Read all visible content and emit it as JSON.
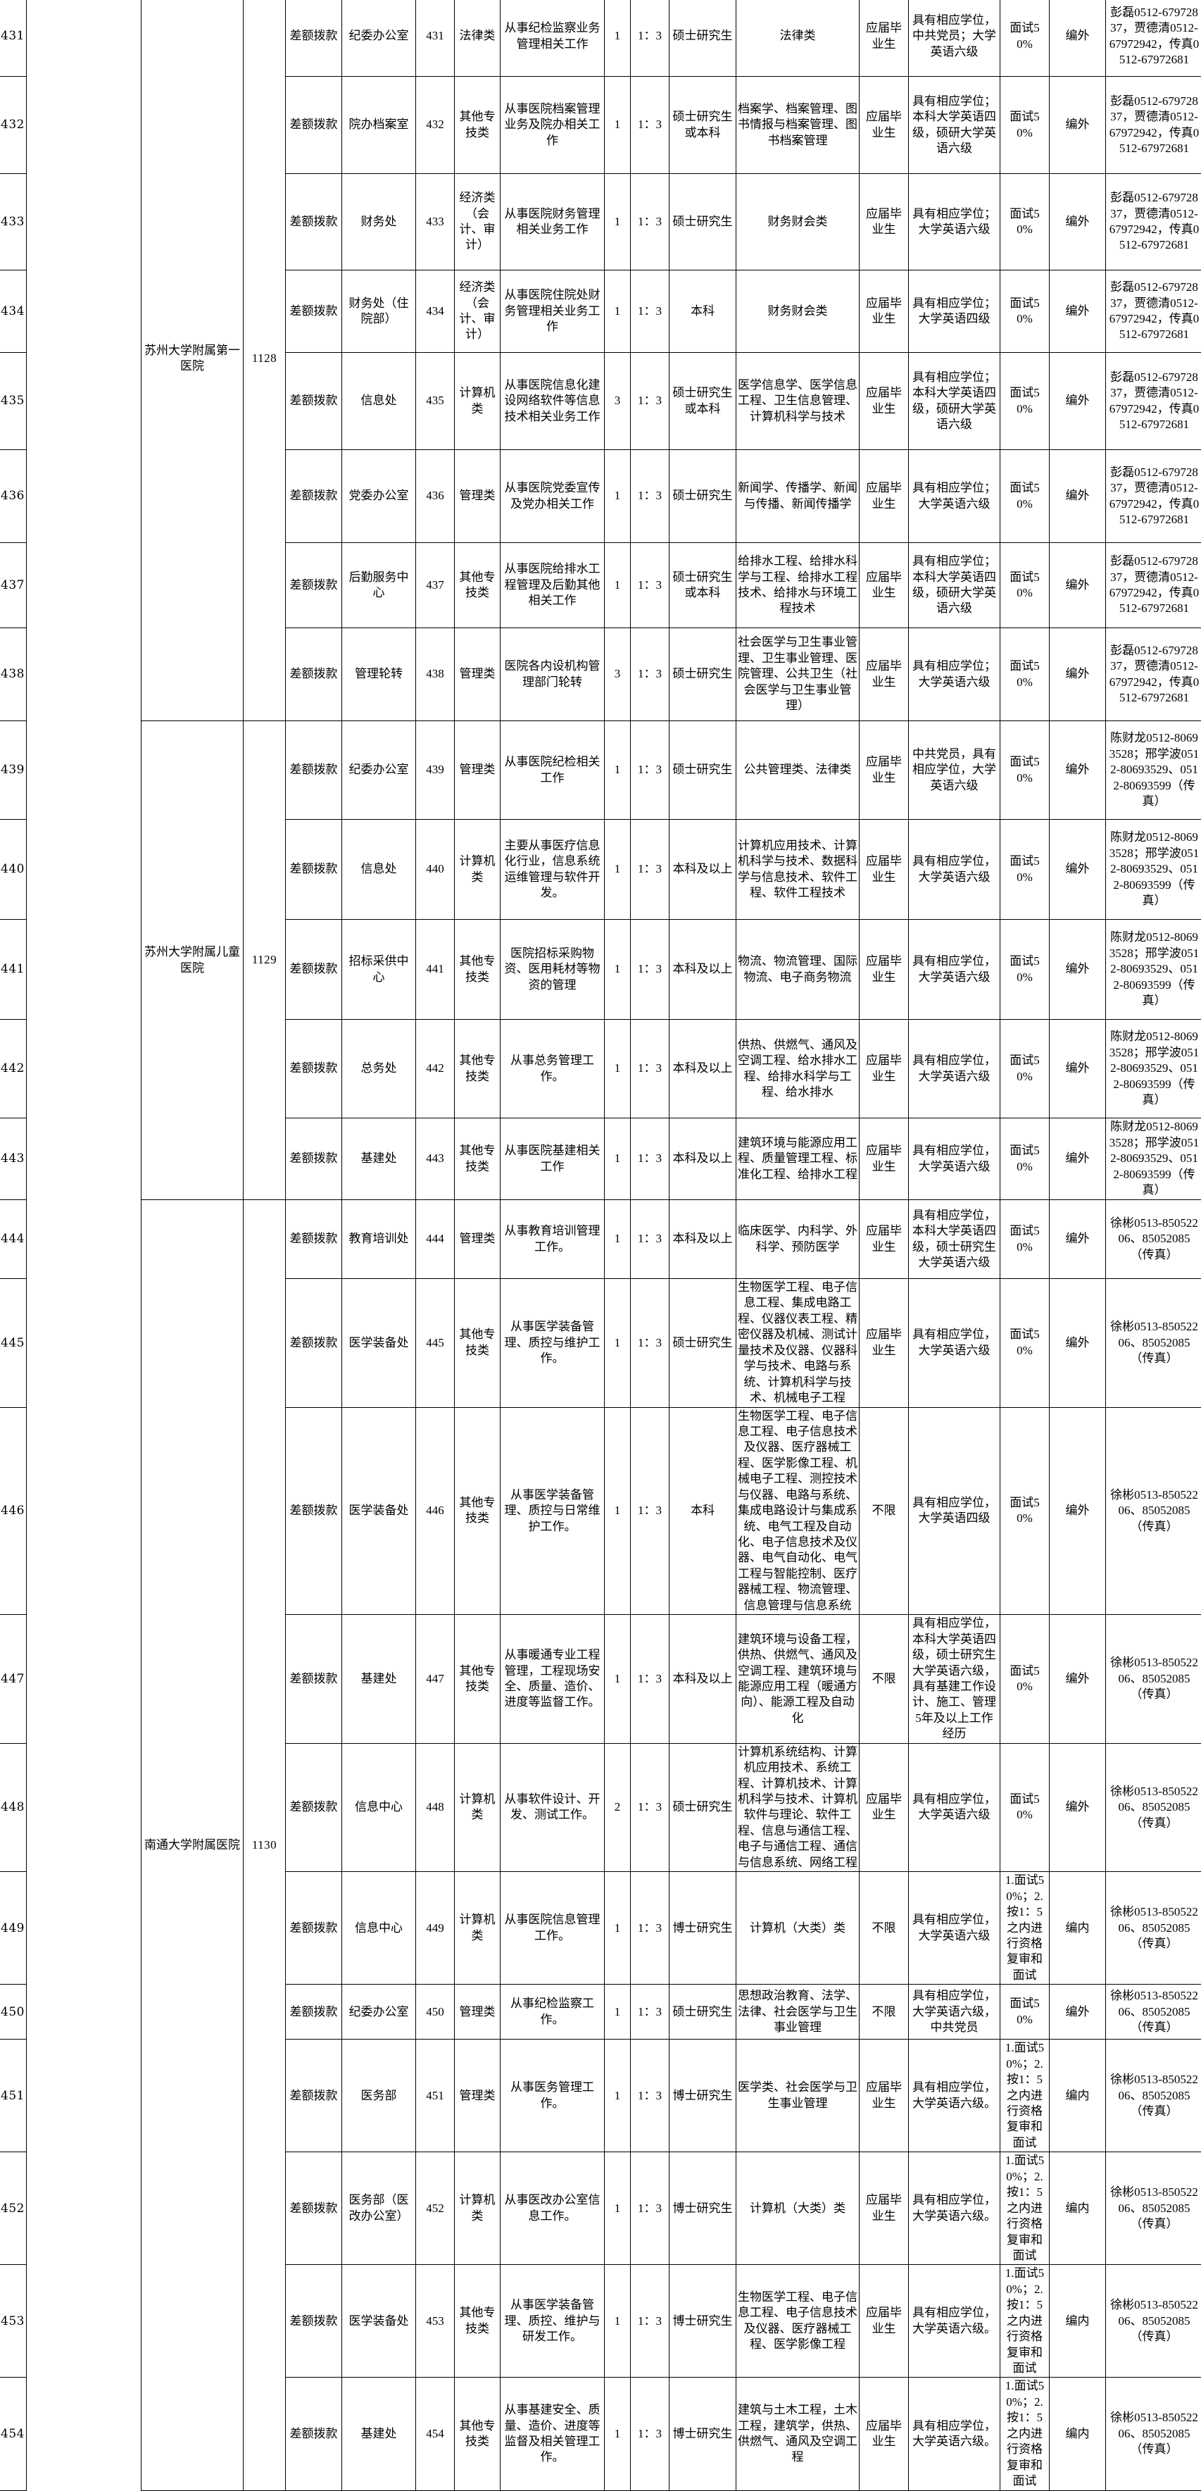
{
  "table": {
    "groups": [
      {
        "org": "苏州大学附属第一医院",
        "code": "1128",
        "row_count": 8,
        "contact": "彭磊0512-67972837，贾德清0512-67972942，传真0512-67972681"
      },
      {
        "org": "苏州大学附属儿童医院",
        "code": "1129",
        "row_count": 5,
        "contact": "陈财龙0512-80693528；邢学波0512-80693529、0512-80693599（传真）"
      },
      {
        "org": "南通大学附属医院",
        "code": "1130",
        "row_count": 11,
        "contact": "徐彬0513-85052206、85052085（传真）"
      }
    ],
    "rows": [
      {
        "seq": "431",
        "funding": "差额拨款",
        "dept": "纪委办公室",
        "job_code": "431",
        "category": "法律类",
        "duty": "从事纪检监察业务管理相关工作",
        "count": "1",
        "ratio": "1：3",
        "education": "硕士研究生",
        "majors": "法律类",
        "grad_type": "应届毕业生",
        "requirements": "具有相应学位，中共党员；大学英语六级",
        "exam": "面试50%",
        "note": "编外",
        "contact": "彭磊0512-67972837，贾德清0512-67972942，传真0512-67972681"
      },
      {
        "seq": "432",
        "funding": "差额拨款",
        "dept": "院办档案室",
        "job_code": "432",
        "category": "其他专技类",
        "duty": "从事医院档案管理业务及院办相关工作",
        "count": "1",
        "ratio": "1：3",
        "education": "硕士研究生或本科",
        "majors": "档案学、档案管理、图书情报与档案管理、图书档案管理",
        "grad_type": "应届毕业生",
        "requirements": "具有相应学位；本科大学英语四级，硕研大学英语六级",
        "exam": "面试50%",
        "note": "编外",
        "contact": "彭磊0512-67972837，贾德清0512-67972942，传真0512-67972681"
      },
      {
        "seq": "433",
        "funding": "差额拨款",
        "dept": "财务处",
        "job_code": "433",
        "category": "经济类（会计、审计）",
        "duty": "从事医院财务管理相关业务工作",
        "count": "1",
        "ratio": "1：3",
        "education": "硕士研究生",
        "majors": "财务财会类",
        "grad_type": "应届毕业生",
        "requirements": "具有相应学位；大学英语六级",
        "exam": "面试50%",
        "note": "编外",
        "contact": "彭磊0512-67972837，贾德清0512-67972942，传真0512-67972681"
      },
      {
        "seq": "434",
        "funding": "差额拨款",
        "dept": "财务处（住院部）",
        "job_code": "434",
        "category": "经济类（会计、审计）",
        "duty": "从事医院住院处财务管理相关业务工作",
        "count": "1",
        "ratio": "1：3",
        "education": "本科",
        "majors": "财务财会类",
        "grad_type": "应届毕业生",
        "requirements": "具有相应学位；大学英语四级",
        "exam": "面试50%",
        "note": "编外",
        "contact": "彭磊0512-67972837，贾德清0512-67972942，传真0512-67972681"
      },
      {
        "seq": "435",
        "funding": "差额拨款",
        "dept": "信息处",
        "job_code": "435",
        "category": "计算机类",
        "duty": "从事医院信息化建设网络软件等信息技术相关业务工作",
        "count": "3",
        "ratio": "1：3",
        "education": "硕士研究生或本科",
        "majors": "医学信息学、医学信息工程、卫生信息管理、计算机科学与技术",
        "grad_type": "应届毕业生",
        "requirements": "具有相应学位；本科大学英语四级，硕研大学英语六级",
        "exam": "面试50%",
        "note": "编外",
        "contact": "彭磊0512-67972837，贾德清0512-67972942，传真0512-67972681"
      },
      {
        "seq": "436",
        "funding": "差额拨款",
        "dept": "党委办公室",
        "job_code": "436",
        "category": "管理类",
        "duty": "从事医院党委宣传及党办相关工作",
        "count": "1",
        "ratio": "1：3",
        "education": "硕士研究生",
        "majors": "新闻学、传播学、新闻与传播、新闻传播学",
        "grad_type": "应届毕业生",
        "requirements": "具有相应学位；大学英语六级",
        "exam": "面试50%",
        "note": "编外",
        "contact": "彭磊0512-67972837，贾德清0512-67972942，传真0512-67972681"
      },
      {
        "seq": "437",
        "funding": "差额拨款",
        "dept": "后勤服务中心",
        "job_code": "437",
        "category": "其他专技类",
        "duty": "从事医院给排水工程管理及后勤其他相关工作",
        "count": "1",
        "ratio": "1：3",
        "education": "硕士研究生或本科",
        "majors": "给排水工程、给排水科学与工程、给排水工程技术、给排水与环境工程技术",
        "grad_type": "应届毕业生",
        "requirements": "具有相应学位；本科大学英语四级，硕研大学英语六级",
        "exam": "面试50%",
        "note": "编外",
        "contact": "彭磊0512-67972837，贾德清0512-67972942，传真0512-67972681"
      },
      {
        "seq": "438",
        "funding": "差额拨款",
        "dept": "管理轮转",
        "job_code": "438",
        "category": "管理类",
        "duty": "医院各内设机构管理部门轮转",
        "count": "3",
        "ratio": "1：3",
        "education": "硕士研究生",
        "majors": "社会医学与卫生事业管理、卫生事业管理、医院管理、公共卫生（社会医学与卫生事业管理）",
        "grad_type": "应届毕业生",
        "requirements": "具有相应学位；大学英语六级",
        "exam": "面试50%",
        "note": "编外",
        "contact": "彭磊0512-67972837，贾德清0512-67972942，传真0512-67972681"
      },
      {
        "seq": "439",
        "funding": "差额拨款",
        "dept": "纪委办公室",
        "job_code": "439",
        "category": "管理类",
        "duty": "从事医院纪检相关工作",
        "count": "1",
        "ratio": "1：3",
        "education": "硕士研究生",
        "majors": "公共管理类、法律类",
        "grad_type": "应届毕业生",
        "requirements": "中共党员，具有相应学位，大学英语六级",
        "exam": "面试50%",
        "note": "编外",
        "contact": "陈财龙0512-80693528；邢学波0512-80693529、0512-80693599（传真）"
      },
      {
        "seq": "440",
        "funding": "差额拨款",
        "dept": "信息处",
        "job_code": "440",
        "category": "计算机类",
        "duty": "主要从事医疗信息化行业，信息系统运维管理与软件开发。",
        "count": "1",
        "ratio": "1：3",
        "education": "本科及以上",
        "majors": "计算机应用技术、计算机科学与技术、数据科学与信息技术、软件工程、软件工程技术",
        "grad_type": "应届毕业生",
        "requirements": "具有相应学位，大学英语六级",
        "exam": "面试50%",
        "note": "编外",
        "contact": "陈财龙0512-80693528；邢学波0512-80693529、0512-80693599（传真）"
      },
      {
        "seq": "441",
        "funding": "差额拨款",
        "dept": "招标采供中心",
        "job_code": "441",
        "category": "其他专技类",
        "duty": "医院招标采购物资、医用耗材等物资的管理",
        "count": "1",
        "ratio": "1：3",
        "education": "本科及以上",
        "majors": "物流、物流管理、国际物流、电子商务物流",
        "grad_type": "应届毕业生",
        "requirements": "具有相应学位，大学英语六级",
        "exam": "面试50%",
        "note": "编外",
        "contact": "陈财龙0512-80693528；邢学波0512-80693529、0512-80693599（传真）"
      },
      {
        "seq": "442",
        "funding": "差额拨款",
        "dept": "总务处",
        "job_code": "442",
        "category": "其他专技类",
        "duty": "从事总务管理工作。",
        "count": "1",
        "ratio": "1：3",
        "education": "本科及以上",
        "majors": "供热、供燃气、通风及空调工程、给水排水工程、给排水科学与工程、给水排水",
        "grad_type": "应届毕业生",
        "requirements": "具有相应学位，大学英语六级",
        "exam": "面试50%",
        "note": "编外",
        "contact": "陈财龙0512-80693528；邢学波0512-80693529、0512-80693599（传真）"
      },
      {
        "seq": "443",
        "funding": "差额拨款",
        "dept": "基建处",
        "job_code": "443",
        "category": "其他专技类",
        "duty": "从事医院基建相关工作",
        "count": "1",
        "ratio": "1：3",
        "education": "本科及以上",
        "majors": "建筑环境与能源应用工程、质量管理工程、标准化工程、给排水工程",
        "grad_type": "应届毕业生",
        "requirements": "具有相应学位，大学英语六级",
        "exam": "面试50%",
        "note": "编外",
        "contact": "陈财龙0512-80693528；邢学波0512-80693529、0512-80693599（传真）"
      },
      {
        "seq": "444",
        "funding": "差额拨款",
        "dept": "教育培训处",
        "job_code": "444",
        "category": "管理类",
        "duty": "从事教育培训管理工作。",
        "count": "1",
        "ratio": "1：3",
        "education": "本科及以上",
        "majors": "临床医学、内科学、外科学、预防医学",
        "grad_type": "应届毕业生",
        "requirements": "具有相应学位，本科大学英语四级，硕士研究生大学英语六级",
        "exam": "面试50%",
        "note": "编外",
        "contact": "徐彬0513-85052206、85052085（传真）"
      },
      {
        "seq": "445",
        "funding": "差额拨款",
        "dept": "医学装备处",
        "job_code": "445",
        "category": "其他专技类",
        "duty": "从事医学装备管理、质控与维护工作。",
        "count": "1",
        "ratio": "1：3",
        "education": "硕士研究生",
        "majors": "生物医学工程、电子信息工程、集成电路工程、仪器仪表工程、精密仪器及机械、测试计量技术及仪器、仪器科学与技术、电路与系统、计算机科学与技术、机械电子工程",
        "grad_type": "应届毕业生",
        "requirements": "具有相应学位，大学英语六级",
        "exam": "面试50%",
        "note": "编外",
        "contact": "徐彬0513-85052206、85052085（传真）"
      },
      {
        "seq": "446",
        "funding": "差额拨款",
        "dept": "医学装备处",
        "job_code": "446",
        "category": "其他专技类",
        "duty": "从事医学装备管理、质控与日常维护工作。",
        "count": "1",
        "ratio": "1：3",
        "education": "本科",
        "majors": "生物医学工程、电子信息工程、电子信息技术及仪器、医疗器械工程、医学影像工程、机械电子工程、测控技术与仪器、电路与系统、集成电路设计与集成系统、电气工程及自动化、电子信息技术及仪器、电气自动化、电气工程与智能控制、医疗器械工程、物流管理、信息管理与信息系统",
        "grad_type": "不限",
        "requirements": "具有相应学位，大学英语四级",
        "exam": "面试50%",
        "note": "编外",
        "contact": "徐彬0513-85052206、85052085（传真）"
      },
      {
        "seq": "447",
        "funding": "差额拨款",
        "dept": "基建处",
        "job_code": "447",
        "category": "其他专技类",
        "duty": "从事暖通专业工程管理，工程现场安全、质量、造价、进度等监督工作。",
        "count": "1",
        "ratio": "1：3",
        "education": "本科及以上",
        "majors": "建筑环境与设备工程，供热、供燃气、通风及空调工程、建筑环境与能源应用工程（暖通方向）、能源工程及自动化",
        "grad_type": "不限",
        "requirements": "具有相应学位，本科大学英语四级，硕士研究生大学英语六级，具有基建工作设计、施工、管理5年及以上工作经历",
        "exam": "面试50%",
        "note": "编外",
        "contact": "徐彬0513-85052206、85052085（传真）"
      },
      {
        "seq": "448",
        "funding": "差额拨款",
        "dept": "信息中心",
        "job_code": "448",
        "category": "计算机类",
        "duty": "从事软件设计、开发、测试工作。",
        "count": "2",
        "ratio": "1：3",
        "education": "硕士研究生",
        "majors": "计算机系统结构、计算机应用技术、系统工程、计算机技术、计算机科学与技术、计算机软件与理论、软件工程、信息与通信工程、电子与通信工程、通信与信息系统、网络工程",
        "grad_type": "应届毕业生",
        "requirements": "具有相应学位，大学英语六级",
        "exam": "面试50%",
        "note": "编外",
        "contact": "徐彬0513-85052206、85052085（传真）"
      },
      {
        "seq": "449",
        "funding": "差额拨款",
        "dept": "信息中心",
        "job_code": "449",
        "category": "计算机类",
        "duty": "从事医院信息管理工作。",
        "count": "1",
        "ratio": "1：3",
        "education": "博士研究生",
        "majors": "计算机（大类）类",
        "grad_type": "不限",
        "requirements": "具有相应学位，大学英语六级",
        "exam": "1.面试50%；2.按1：5之内进行资格复审和面试",
        "note": "编内",
        "contact": "徐彬0513-85052206、85052085（传真）"
      },
      {
        "seq": "450",
        "funding": "差额拨款",
        "dept": "纪委办公室",
        "job_code": "450",
        "category": "管理类",
        "duty": "从事纪检监察工作。",
        "count": "1",
        "ratio": "1：3",
        "education": "硕士研究生",
        "majors": "思想政治教育、法学、法律、社会医学与卫生事业管理",
        "grad_type": "不限",
        "requirements": "具有相应学位，大学英语六级，中共党员",
        "exam": "面试50%",
        "note": "编外",
        "contact": "徐彬0513-85052206、85052085（传真）"
      },
      {
        "seq": "451",
        "funding": "差额拨款",
        "dept": "医务部",
        "job_code": "451",
        "category": "管理类",
        "duty": "从事医务管理工作。",
        "count": "1",
        "ratio": "1：3",
        "education": "博士研究生",
        "majors": "医学类、社会医学与卫生事业管理",
        "grad_type": "应届毕业生",
        "requirements": "具有相应学位，大学英语六级。",
        "exam": "1.面试50%；2.按1：5之内进行资格复审和面试",
        "note": "编内",
        "contact": "徐彬0513-85052206、85052085（传真）"
      },
      {
        "seq": "452",
        "funding": "差额拨款",
        "dept": "医务部（医改办公室）",
        "job_code": "452",
        "category": "计算机类",
        "duty": "从事医改办公室信息工作。",
        "count": "1",
        "ratio": "1：3",
        "education": "博士研究生",
        "majors": "计算机（大类）类",
        "grad_type": "应届毕业生",
        "requirements": "具有相应学位，大学英语六级。",
        "exam": "1.面试50%；2.按1：5之内进行资格复审和面试",
        "note": "编内",
        "contact": "徐彬0513-85052206、85052085（传真）"
      },
      {
        "seq": "453",
        "funding": "差额拨款",
        "dept": "医学装备处",
        "job_code": "453",
        "category": "其他专技类",
        "duty": "从事医学装备管理、质控、维护与研发工作。",
        "count": "1",
        "ratio": "1：3",
        "education": "博士研究生",
        "majors": "生物医学工程、电子信息工程、电子信息技术及仪器、医疗器械工程、医学影像工程",
        "grad_type": "应届毕业生",
        "requirements": "具有相应学位，大学英语六级。",
        "exam": "1.面试50%；2.按1：5之内进行资格复审和面试",
        "note": "编内",
        "contact": "徐彬0513-85052206、85052085（传真）"
      },
      {
        "seq": "454",
        "funding": "差额拨款",
        "dept": "基建处",
        "job_code": "454",
        "category": "其他专技类",
        "duty": "从事基建安全、质量、造价、进度等监督及相关管理工作。",
        "count": "1",
        "ratio": "1：3",
        "education": "博士研究生",
        "majors": "建筑与土木工程，土木工程，建筑学，供热、供燃气、通风及空调工程",
        "grad_type": "应届毕业生",
        "requirements": "具有相应学位，大学英语六级。",
        "exam": "1.面试50%；2.按1：5之内进行资格复审和面试",
        "note": "编内",
        "contact": "徐彬0513-85052206、85052085（传真）"
      }
    ]
  }
}
